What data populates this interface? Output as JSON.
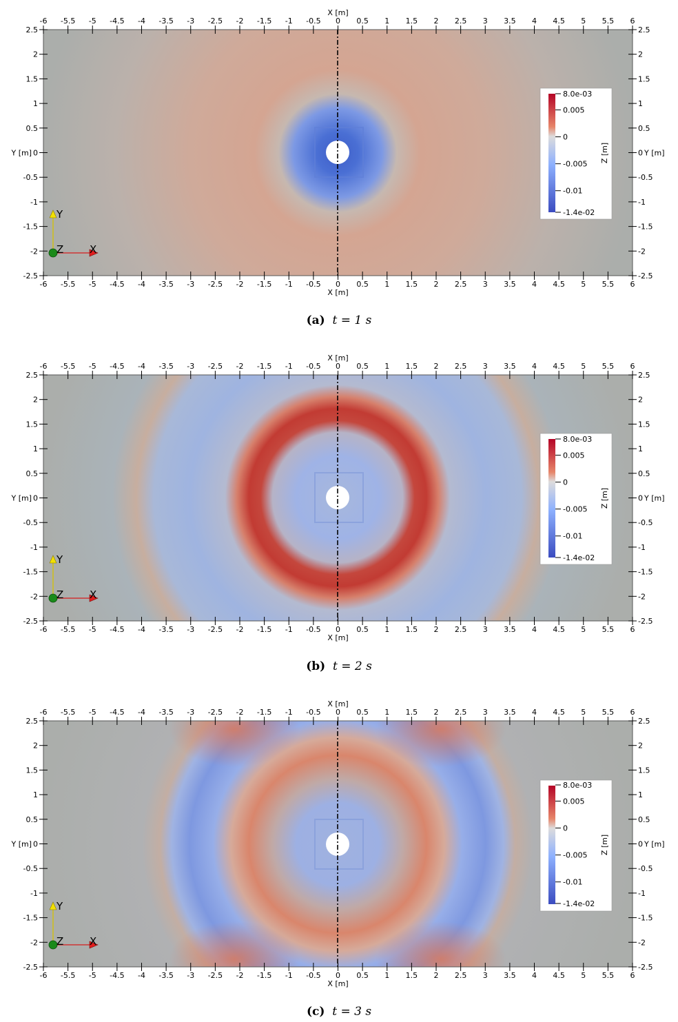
{
  "chart_data": [
    {
      "type": "heatmap",
      "caption_label": "(a)",
      "caption_time": "t = 1 s",
      "time_s": 1,
      "xlabel": "X [m]",
      "ylabel": "Y [m]",
      "xlim": [
        -6,
        6
      ],
      "ylim": [
        -2.5,
        2.5
      ],
      "xticks": [
        "-6",
        "-5.5",
        "-5",
        "-4.5",
        "-4",
        "-3.5",
        "-3",
        "-2.5",
        "-2",
        "-1.5",
        "-1",
        "-0.5",
        "0",
        "0.5",
        "1",
        "1.5",
        "2",
        "2.5",
        "3",
        "3.5",
        "4",
        "4.5",
        "5",
        "5.5",
        "6"
      ],
      "yticks": [
        "-2.5",
        "-2",
        "-1.5",
        "-1",
        "-0.5",
        "0",
        "0.5",
        "1",
        "1.5",
        "2",
        "2.5"
      ],
      "colorbar": {
        "label": "Z [m]",
        "range": [
          -0.014,
          0.008
        ],
        "ticks": [
          {
            "value": 0.008,
            "label": "8.0e-03"
          },
          {
            "value": 0.005,
            "label": "0.005"
          },
          {
            "value": 0,
            "label": "0"
          },
          {
            "value": -0.005,
            "label": "-0.005"
          },
          {
            "value": -0.01,
            "label": "-0.01"
          },
          {
            "value": -0.014,
            "label": "-1.4e-02"
          }
        ]
      },
      "axes_triad": {
        "x": "X",
        "y": "Y",
        "z": "Z"
      }
    },
    {
      "type": "heatmap",
      "caption_label": "(b)",
      "caption_time": "t = 2 s",
      "time_s": 2,
      "xlabel": "X [m]",
      "ylabel": "Y [m]",
      "xlim": [
        -6,
        6
      ],
      "ylim": [
        -2.5,
        2.5
      ],
      "xticks": [
        "-6",
        "-5.5",
        "-5",
        "-4.5",
        "-4",
        "-3.5",
        "-3",
        "-2.5",
        "-2",
        "-1.5",
        "-1",
        "-0.5",
        "0",
        "0.5",
        "1",
        "1.5",
        "2",
        "2.5",
        "3",
        "3.5",
        "4",
        "4.5",
        "5",
        "5.5",
        "6"
      ],
      "yticks": [
        "-2.5",
        "-2",
        "-1.5",
        "-1",
        "-0.5",
        "0",
        "0.5",
        "1",
        "1.5",
        "2",
        "2.5"
      ],
      "colorbar": {
        "label": "Z [m]",
        "range": [
          -0.014,
          0.008
        ],
        "ticks": [
          {
            "value": 0.008,
            "label": "8.0e-03"
          },
          {
            "value": 0.005,
            "label": "0.005"
          },
          {
            "value": 0,
            "label": "0"
          },
          {
            "value": -0.005,
            "label": "-0.005"
          },
          {
            "value": -0.01,
            "label": "-0.01"
          },
          {
            "value": -0.014,
            "label": "-1.4e-02"
          }
        ]
      },
      "axes_triad": {
        "x": "X",
        "y": "Y",
        "z": "Z"
      }
    },
    {
      "type": "heatmap",
      "caption_label": "(c)",
      "caption_time": "t = 3 s",
      "time_s": 3,
      "xlabel": "X [m]",
      "ylabel": "Y [m]",
      "xlim": [
        -6,
        6
      ],
      "ylim": [
        -2.5,
        2.5
      ],
      "xticks": [
        "-6",
        "-5.5",
        "-5",
        "-4.5",
        "-4",
        "-3.5",
        "-3",
        "-2.5",
        "-2",
        "-1.5",
        "-1",
        "-0.5",
        "0",
        "0.5",
        "1",
        "1.5",
        "2",
        "2.5",
        "3",
        "3.5",
        "4",
        "4.5",
        "5",
        "5.5",
        "6"
      ],
      "yticks": [
        "-2.5",
        "-2",
        "-1.5",
        "-1",
        "-0.5",
        "0",
        "0.5",
        "1",
        "1.5",
        "2",
        "2.5"
      ],
      "colorbar": {
        "label": "Z [m]",
        "range": [
          -0.014,
          0.008
        ],
        "ticks": [
          {
            "value": 0.008,
            "label": "8.0e-03"
          },
          {
            "value": 0.005,
            "label": "0.005"
          },
          {
            "value": 0,
            "label": "0"
          },
          {
            "value": -0.005,
            "label": "-0.005"
          },
          {
            "value": -0.01,
            "label": "-0.01"
          },
          {
            "value": -0.014,
            "label": "-1.4e-02"
          }
        ]
      },
      "axes_triad": {
        "x": "X",
        "y": "Y",
        "z": "Z"
      }
    }
  ]
}
